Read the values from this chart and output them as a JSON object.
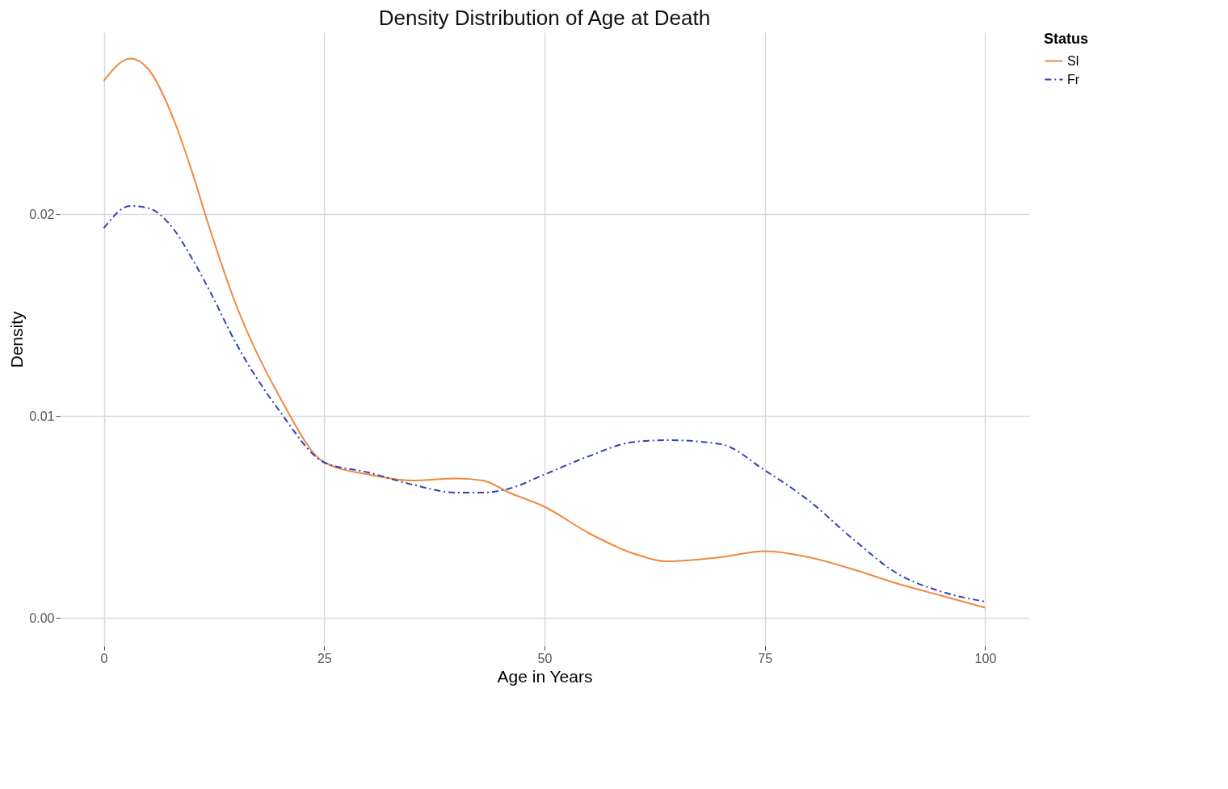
{
  "chart_data": {
    "type": "line",
    "title": "Density Distribution of Age at Death",
    "xlabel": "Age in Years",
    "ylabel": "Density",
    "legend_title": "Status",
    "x": [
      0,
      3,
      5,
      8,
      10,
      12,
      15,
      20,
      25,
      30,
      35,
      40,
      43,
      46,
      50,
      55,
      60,
      64,
      70,
      75,
      80,
      85,
      90,
      95,
      100
    ],
    "series": [
      {
        "name": "Sl",
        "color": "#f0883e",
        "line_style": "solid",
        "values": [
          0.0266,
          0.0277,
          0.0272,
          0.0246,
          0.0221,
          0.0193,
          0.0155,
          0.0109,
          0.0077,
          0.0071,
          0.0068,
          0.0069,
          0.0068,
          0.0062,
          0.0055,
          0.0042,
          0.0032,
          0.0028,
          0.003,
          0.0033,
          0.003,
          0.0024,
          0.0017,
          0.0011,
          0.0005
        ]
      },
      {
        "name": "Fr",
        "color": "#3340b8",
        "line_style": "dashed",
        "values": [
          0.0193,
          0.0204,
          0.0203,
          0.0192,
          0.0178,
          0.0162,
          0.0136,
          0.0102,
          0.0077,
          0.0072,
          0.0066,
          0.0062,
          0.0062,
          0.0064,
          0.0071,
          0.008,
          0.0087,
          0.0088,
          0.0086,
          0.0073,
          0.0058,
          0.0039,
          0.0022,
          0.0013,
          0.0008
        ]
      }
    ],
    "xlim": [
      -5,
      105
    ],
    "xticks": [
      0,
      25,
      50,
      75,
      100
    ],
    "ylim": [
      -0.0014,
      0.029
    ],
    "yticks": [
      {
        "value": 0,
        "label": "0.00"
      },
      {
        "value": 0.01,
        "label": "0.01"
      },
      {
        "value": 0.02,
        "label": "0.02"
      }
    ],
    "grid": true,
    "legend": "right",
    "marker": "none"
  }
}
